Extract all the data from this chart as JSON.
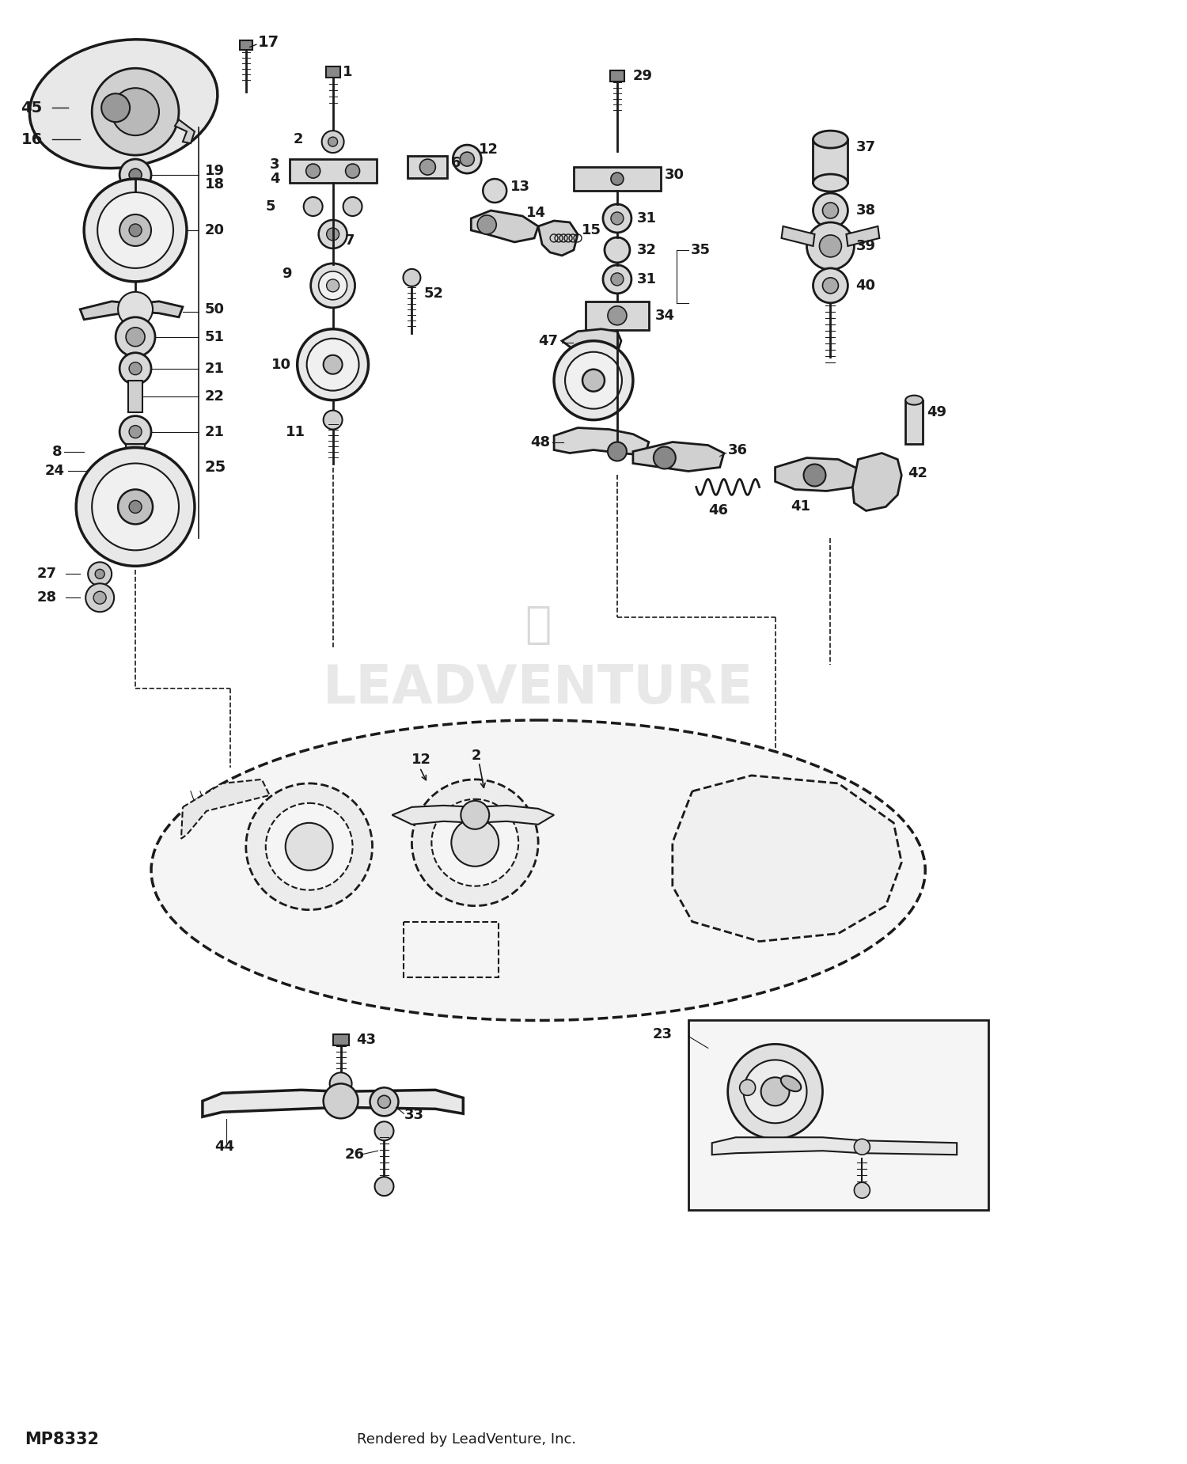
{
  "bg_color": "#ffffff",
  "lc": "#1a1a1a",
  "footer_left": "MP8332",
  "footer_right": "Rendered by LeadVenture, Inc.",
  "watermark": "LEADVENTURE",
  "fig_w": 15.0,
  "fig_h": 18.5,
  "dpi": 100
}
